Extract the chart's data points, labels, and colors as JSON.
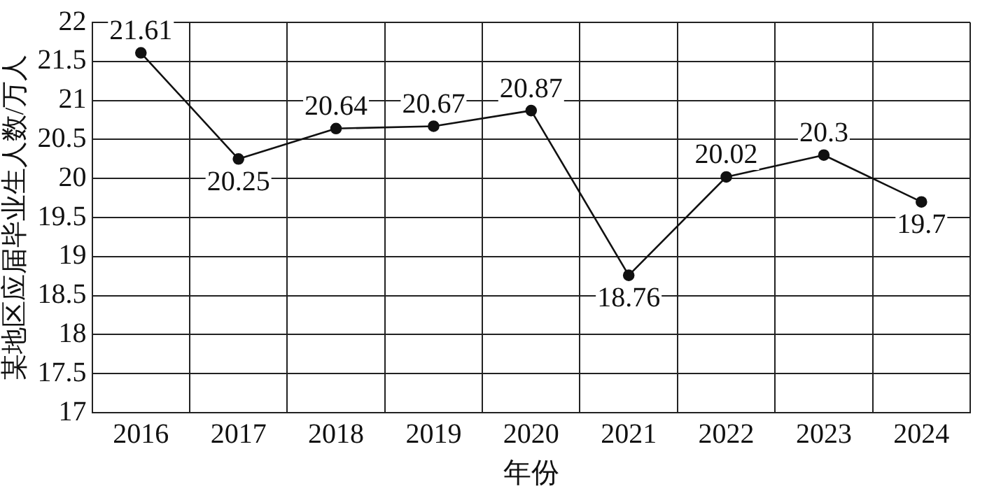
{
  "chart_data": {
    "type": "line",
    "xlabel": "年份",
    "ylabel": "某地区应届毕业生人数/万人",
    "categories": [
      "2016",
      "2017",
      "2018",
      "2019",
      "2020",
      "2021",
      "2022",
      "2023",
      "2024"
    ],
    "series": [
      {
        "color": "#111111",
        "values": [
          21.61,
          20.25,
          20.64,
          20.67,
          20.87,
          18.76,
          20.02,
          20.3,
          19.7
        ]
      }
    ],
    "ylim": [
      17,
      22
    ],
    "yticks": [
      17,
      {
        "value": 17.5,
        "label": "17.5"
      },
      18,
      {
        "value": 18.5,
        "label": "18.5"
      },
      19,
      {
        "value": 19.5,
        "label": "19.5"
      },
      20,
      {
        "value": 20.5,
        "label": "20.5"
      },
      21,
      {
        "value": 21.5,
        "label": "21.5"
      },
      22
    ],
    "grid": true,
    "legend": false,
    "marker": "circle",
    "line_style": "solid",
    "data_labels": true
  }
}
